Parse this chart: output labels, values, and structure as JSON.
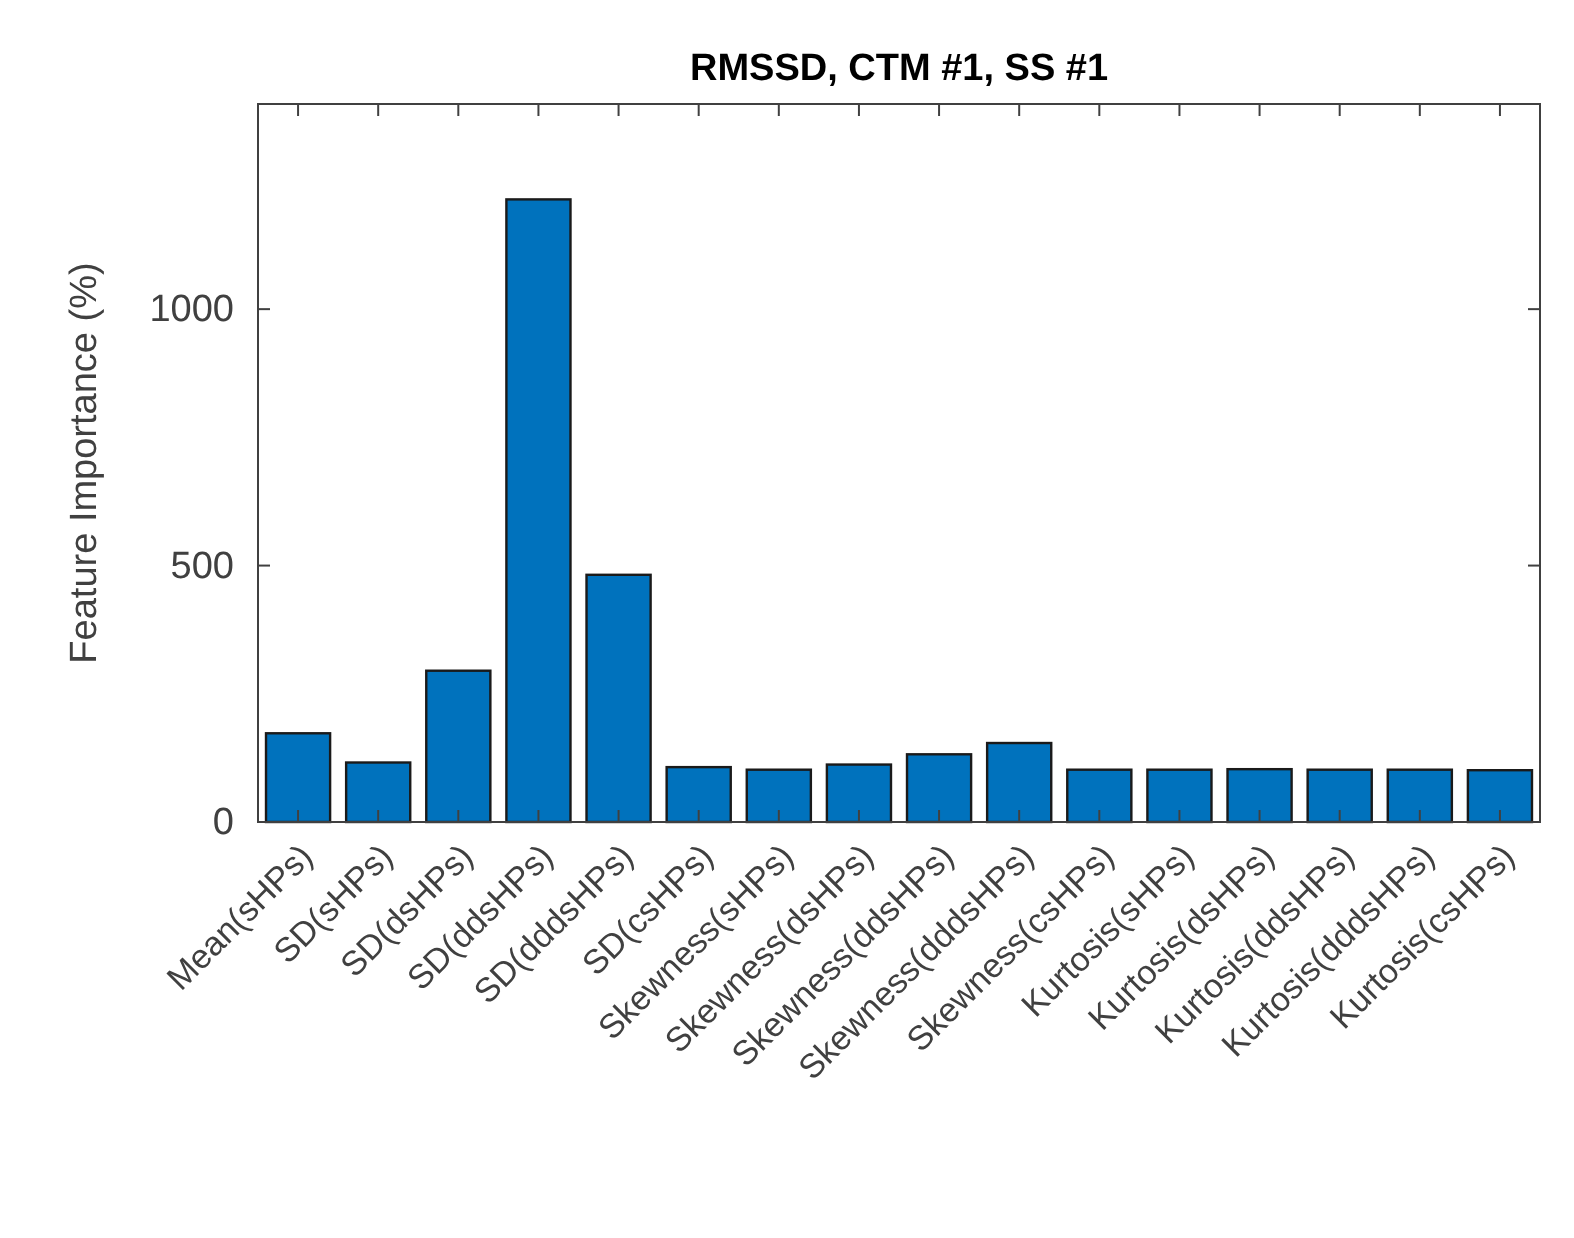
{
  "chart_data": {
    "type": "bar",
    "title": "RMSSD, CTM #1, SS #1",
    "ylabel": "Feature Importance (%)",
    "categories": [
      "Mean(sHPs)",
      "SD(sHPs)",
      "SD(dsHPs)",
      "SD(ddsHPs)",
      "SD(dddsHPs)",
      "SD(csHPs)",
      "Skewness(sHPs)",
      "Skewness(dsHPs)",
      "Skewness(ddsHPs)",
      "Skewness(dddsHPs)",
      "Skewness(csHPs)",
      "Kurtosis(sHPs)",
      "Kurtosis(dsHPs)",
      "Kurtosis(ddsHPs)",
      "Kurtosis(dddsHPs)",
      "Kurtosis(csHPs)"
    ],
    "values": [
      173,
      116,
      295,
      1214,
      482,
      107,
      102,
      112,
      132,
      154,
      102,
      102,
      103,
      102,
      102,
      101
    ],
    "color": "#0072bd",
    "ylim": [
      0,
      1400
    ],
    "yticks": [
      0,
      500,
      1000
    ],
    "grid": false
  }
}
